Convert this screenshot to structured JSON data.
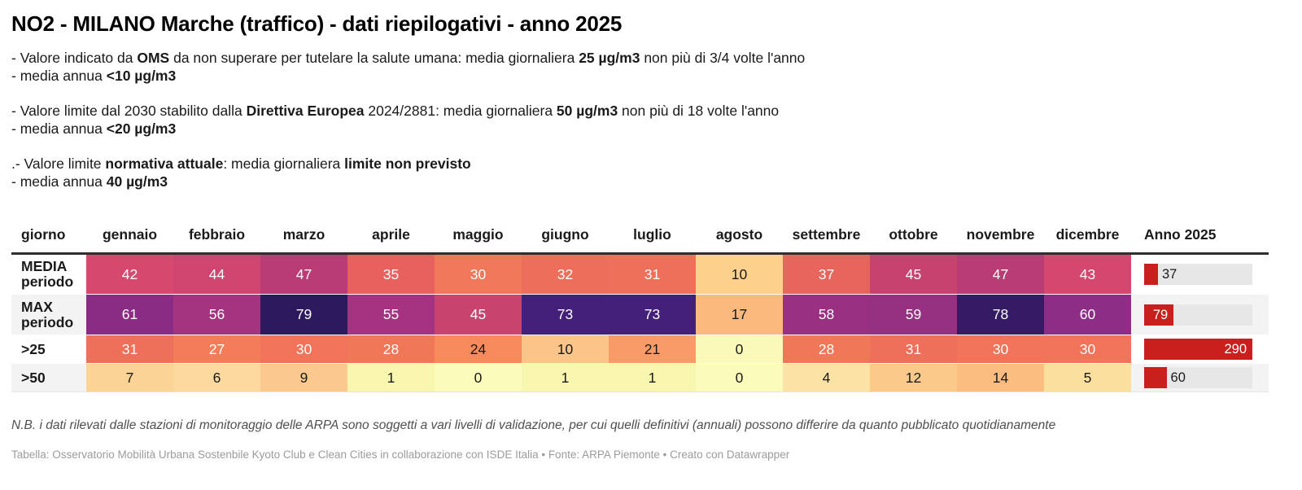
{
  "title": "NO2 - MILANO Marche (traffico) - dati riepilogativi - anno 2025",
  "notes": [
    {
      "lines": [
        [
          {
            "t": "- Valore indicato da "
          },
          {
            "t": "OMS",
            "b": true
          },
          {
            "t": " da non superare per tutelare la salute umana: media giornaliera "
          },
          {
            "t": "25 µg/m3",
            "b": true
          },
          {
            "t": " non più di 3/4 volte l'anno"
          }
        ],
        [
          {
            "t": "- media annua "
          },
          {
            "t": "<10 µg/m3",
            "b": true
          }
        ]
      ]
    },
    {
      "lines": [
        [
          {
            "t": "- Valore limite dal 2030 stabilito dalla "
          },
          {
            "t": "Direttiva Europea",
            "b": true
          },
          {
            "t": " 2024/2881: media giornaliera "
          },
          {
            "t": "50 µg/m3",
            "b": true
          },
          {
            "t": " non più di 18 volte l'anno"
          }
        ],
        [
          {
            "t": "- media annua "
          },
          {
            "t": "<20 µg/m3",
            "b": true
          }
        ]
      ]
    },
    {
      "lines": [
        [
          {
            "t": ".- Valore limite "
          },
          {
            "t": "normativa attuale",
            "b": true
          },
          {
            "t": ": media giornaliera "
          },
          {
            "t": "limite non previsto",
            "b": true
          }
        ],
        [
          {
            "t": "- media annua "
          },
          {
            "t": "40 µg/m3",
            "b": true
          }
        ]
      ]
    }
  ],
  "table": {
    "columns": [
      "giorno",
      "gennaio",
      "febbraio",
      "marzo",
      "aprile",
      "maggio",
      "giugno",
      "luglio",
      "agosto",
      "settembre",
      "ottobre",
      "novembre",
      "dicembre",
      "Anno 2025"
    ],
    "bar_max": 290,
    "bar_color": "#c9201d",
    "bar_track_color": "#e7e7e7",
    "stripe_color": "#f3f3f3",
    "rows": [
      {
        "label_lines": [
          "MEDIA",
          "periodo"
        ],
        "stripe": false,
        "cells": [
          {
            "v": "42",
            "bg": "#d6486e",
            "fg": "#ffffff"
          },
          {
            "v": "44",
            "bg": "#d04570",
            "fg": "#ffffff"
          },
          {
            "v": "47",
            "bg": "#b93d74",
            "fg": "#ffffff"
          },
          {
            "v": "35",
            "bg": "#e9615f",
            "fg": "#ffffff"
          },
          {
            "v": "30",
            "bg": "#f0795c",
            "fg": "#ffffff"
          },
          {
            "v": "32",
            "bg": "#ed6e5b",
            "fg": "#ffffff"
          },
          {
            "v": "31",
            "bg": "#ee705a",
            "fg": "#ffffff"
          },
          {
            "v": "10",
            "bg": "#fbd18c",
            "fg": "#1a1a1a"
          },
          {
            "v": "37",
            "bg": "#e8655d",
            "fg": "#ffffff"
          },
          {
            "v": "45",
            "bg": "#c64370",
            "fg": "#ffffff"
          },
          {
            "v": "47",
            "bg": "#b93d74",
            "fg": "#ffffff"
          },
          {
            "v": "43",
            "bg": "#d4476e",
            "fg": "#ffffff"
          }
        ],
        "anno": {
          "value": 37,
          "display": "37",
          "inside": false,
          "label_color": "#1a1a1a"
        }
      },
      {
        "label_lines": [
          "MAX",
          "periodo"
        ],
        "stripe": true,
        "cells": [
          {
            "v": "61",
            "bg": "#8a2c84",
            "fg": "#ffffff"
          },
          {
            "v": "56",
            "bg": "#a43380",
            "fg": "#ffffff"
          },
          {
            "v": "79",
            "bg": "#2d1a5e",
            "fg": "#ffffff"
          },
          {
            "v": "55",
            "bg": "#a53381",
            "fg": "#ffffff"
          },
          {
            "v": "45",
            "bg": "#c8446f",
            "fg": "#ffffff"
          },
          {
            "v": "73",
            "bg": "#45207a",
            "fg": "#ffffff"
          },
          {
            "v": "73",
            "bg": "#45207a",
            "fg": "#ffffff"
          },
          {
            "v": "17",
            "bg": "#fcb97e",
            "fg": "#1a1a1a"
          },
          {
            "v": "58",
            "bg": "#9a3082",
            "fg": "#ffffff"
          },
          {
            "v": "59",
            "bg": "#963181",
            "fg": "#ffffff"
          },
          {
            "v": "78",
            "bg": "#341b64",
            "fg": "#ffffff"
          },
          {
            "v": "60",
            "bg": "#8d2d85",
            "fg": "#ffffff"
          }
        ],
        "anno": {
          "value": 79,
          "display": "79",
          "inside": true,
          "label_color": "#ffffff"
        }
      },
      {
        "label_lines": [
          ">25"
        ],
        "stripe": false,
        "cells": [
          {
            "v": "31",
            "bg": "#ee705a",
            "fg": "#ffffff"
          },
          {
            "v": "27",
            "bg": "#f27d58",
            "fg": "#ffffff"
          },
          {
            "v": "30",
            "bg": "#f0735a",
            "fg": "#ffffff"
          },
          {
            "v": "28",
            "bg": "#f17759",
            "fg": "#ffffff"
          },
          {
            "v": "24",
            "bg": "#f68a5c",
            "fg": "#1a1a1a"
          },
          {
            "v": "10",
            "bg": "#fbc489",
            "fg": "#1a1a1a"
          },
          {
            "v": "21",
            "bg": "#f89b68",
            "fg": "#1a1a1a"
          },
          {
            "v": "0",
            "bg": "#fbf9b9",
            "fg": "#1a1a1a"
          },
          {
            "v": "28",
            "bg": "#f17759",
            "fg": "#ffffff"
          },
          {
            "v": "31",
            "bg": "#ee705a",
            "fg": "#ffffff"
          },
          {
            "v": "30",
            "bg": "#f0735a",
            "fg": "#ffffff"
          },
          {
            "v": "30",
            "bg": "#f0735a",
            "fg": "#ffffff"
          }
        ],
        "anno": {
          "value": 290,
          "display": "290",
          "inside": true,
          "label_color": "#ffffff"
        }
      },
      {
        "label_lines": [
          ">50"
        ],
        "stripe": true,
        "cells": [
          {
            "v": "7",
            "bg": "#fbd495",
            "fg": "#1a1a1a"
          },
          {
            "v": "6",
            "bg": "#fbd99f",
            "fg": "#1a1a1a"
          },
          {
            "v": "9",
            "bg": "#fbc98d",
            "fg": "#1a1a1a"
          },
          {
            "v": "1",
            "bg": "#f9f6b0",
            "fg": "#1a1a1a"
          },
          {
            "v": "0",
            "bg": "#fbfcbc",
            "fg": "#1a1a1a"
          },
          {
            "v": "1",
            "bg": "#f9f6b0",
            "fg": "#1a1a1a"
          },
          {
            "v": "1",
            "bg": "#f9f6b0",
            "fg": "#1a1a1a"
          },
          {
            "v": "0",
            "bg": "#fbfcbc",
            "fg": "#1a1a1a"
          },
          {
            "v": "4",
            "bg": "#fbe3a6",
            "fg": "#1a1a1a"
          },
          {
            "v": "12",
            "bg": "#fbca8b",
            "fg": "#1a1a1a"
          },
          {
            "v": "14",
            "bg": "#fbbc7f",
            "fg": "#1a1a1a"
          },
          {
            "v": "5",
            "bg": "#fbdf9f",
            "fg": "#1a1a1a"
          }
        ],
        "anno": {
          "value": 60,
          "display": "60",
          "inside": false,
          "label_color": "#1a1a1a"
        }
      }
    ]
  },
  "footer": {
    "nb": "N.B. i dati rilevati dalle stazioni di monitoraggio delle ARPA sono soggetti a vari livelli di validazione, per cui quelli definitivi (annuali) possono differire da quanto pubblicato quotidianamente",
    "attribution": "Tabella: Osservatorio Mobilità Urbana Sostenbile Kyoto Club e Clean Cities in collaborazione con ISDE Italia • Fonte: ARPA Piemonte • Creato con Datawrapper"
  },
  "chart_data": {
    "type": "heatmap-table",
    "title": "NO2 - MILANO Marche (traffico) - dati riepilogativi - anno 2025",
    "categories": [
      "gennaio",
      "febbraio",
      "marzo",
      "aprile",
      "maggio",
      "giugno",
      "luglio",
      "agosto",
      "settembre",
      "ottobre",
      "novembre",
      "dicembre"
    ],
    "series": [
      {
        "name": "MEDIA periodo",
        "values": [
          42,
          44,
          47,
          35,
          30,
          32,
          31,
          10,
          37,
          45,
          47,
          43
        ],
        "anno_2025": 37
      },
      {
        "name": "MAX periodo",
        "values": [
          61,
          56,
          79,
          55,
          45,
          73,
          73,
          17,
          58,
          59,
          78,
          60
        ],
        "anno_2025": 79
      },
      {
        "name": ">25",
        "values": [
          31,
          27,
          30,
          28,
          24,
          10,
          21,
          0,
          28,
          31,
          30,
          30
        ],
        "anno_2025": 290
      },
      {
        "name": ">50",
        "values": [
          7,
          6,
          9,
          1,
          0,
          1,
          1,
          0,
          4,
          12,
          14,
          5
        ],
        "anno_2025": 60
      }
    ],
    "annual_bar_axis": [
      0,
      290
    ],
    "legend": "none",
    "heat_scale": "low=pale-yellow high=dark-purple"
  }
}
